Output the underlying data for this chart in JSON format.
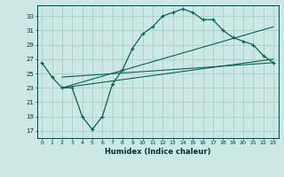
{
  "title": "",
  "xlabel": "Humidex (Indice chaleur)",
  "bg_color": "#cce8e4",
  "grid_color": "#aad4d0",
  "line_color": "#006655",
  "xlim": [
    -0.5,
    23.5
  ],
  "ylim": [
    16.0,
    34.5
  ],
  "yticks": [
    17,
    19,
    21,
    23,
    25,
    27,
    29,
    31,
    33
  ],
  "xticks": [
    0,
    1,
    2,
    3,
    4,
    5,
    6,
    7,
    8,
    9,
    10,
    11,
    12,
    13,
    14,
    15,
    16,
    17,
    18,
    19,
    20,
    21,
    22,
    23
  ],
  "series_main": {
    "x": [
      0,
      1,
      2,
      3,
      4,
      5,
      6,
      7,
      8,
      9,
      10,
      11,
      12,
      13,
      14,
      15,
      16,
      17,
      18,
      19,
      20,
      21,
      22,
      23
    ],
    "y": [
      26.5,
      24.5,
      23.0,
      23.0,
      19.0,
      17.2,
      19.0,
      23.5,
      25.5,
      28.5,
      30.5,
      31.5,
      33.0,
      33.5,
      34.0,
      33.5,
      32.5,
      32.5,
      31.0,
      30.0,
      29.5,
      29.0,
      27.5,
      26.5
    ]
  },
  "series_line1": {
    "x": [
      2,
      23
    ],
    "y": [
      23.0,
      27.0
    ]
  },
  "series_line2": {
    "x": [
      2,
      23
    ],
    "y": [
      23.0,
      31.5
    ]
  },
  "series_line3": {
    "x": [
      2,
      23
    ],
    "y": [
      24.5,
      26.5
    ]
  }
}
